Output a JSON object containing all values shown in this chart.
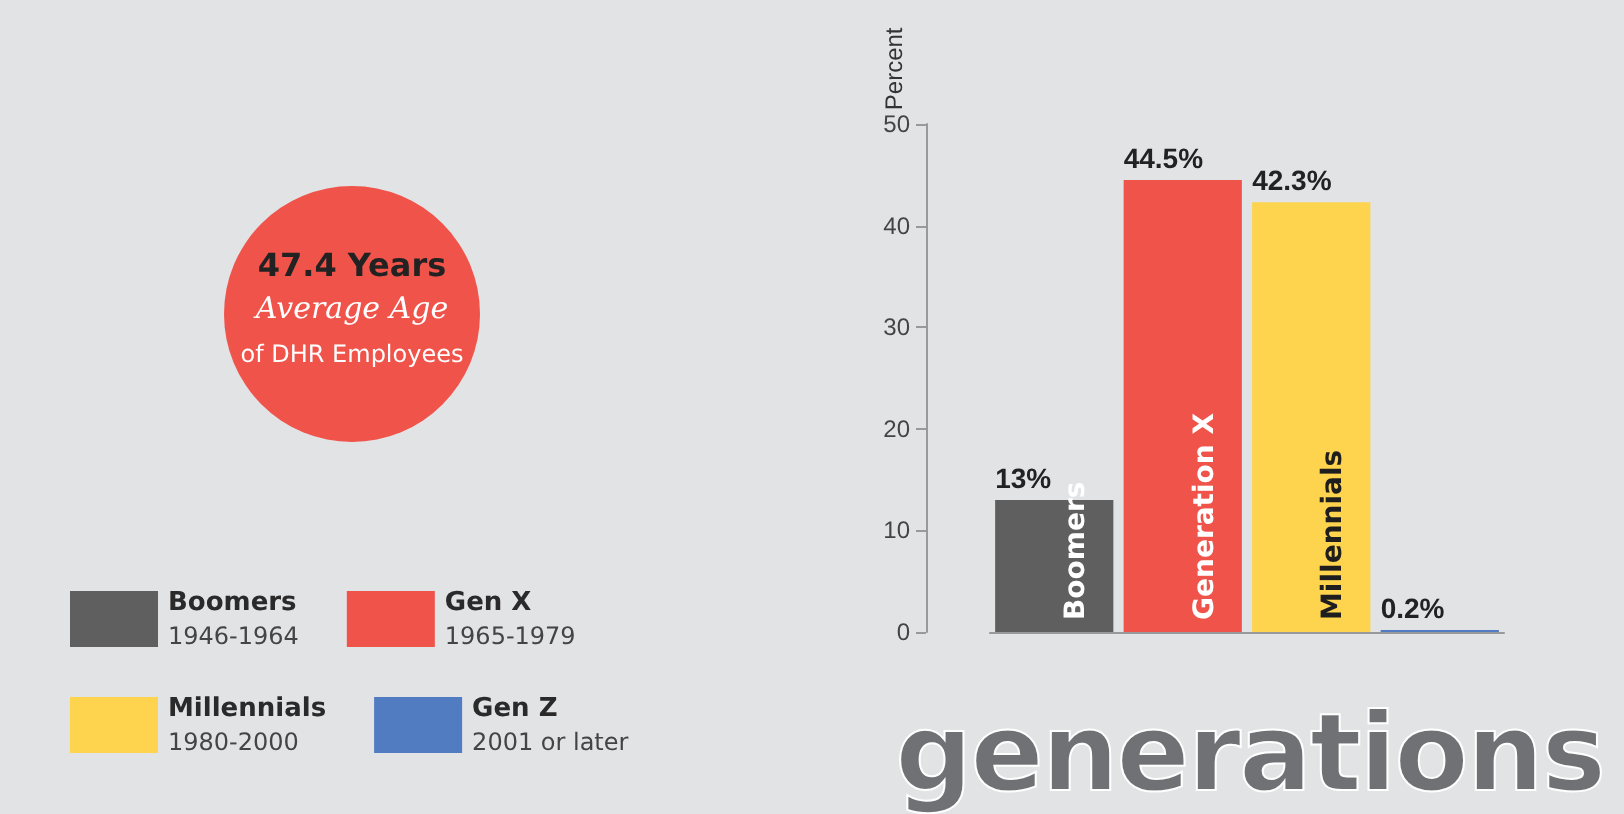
{
  "chart_data": {
    "type": "bar",
    "title": "generations",
    "categories": [
      "Boomers",
      "Generation X",
      "Millennials",
      null
    ],
    "ylabel": "Percent",
    "ylim": [
      0,
      50
    ],
    "yticks": [
      0,
      10,
      20,
      30,
      40,
      50
    ],
    "stacked": true,
    "legend": "bottom left",
    "series": [
      {
        "name": "Boomers",
        "color": "#5f5f5f",
        "values": [
          13,
          null,
          null,
          null
        ],
        "value_labels": [
          "13%",
          null,
          null,
          null
        ]
      },
      {
        "name": "Gen X",
        "color": "#f0534a",
        "values": [
          null,
          44.5,
          null,
          null
        ],
        "value_labels": [
          null,
          "44.5%",
          null,
          null
        ]
      },
      {
        "name": "Millennials",
        "color": "#fed34d",
        "values": [
          null,
          null,
          42.3,
          null
        ],
        "value_labels": [
          null,
          null,
          "42.3%",
          null
        ]
      },
      {
        "name": "Gen Z",
        "color": "#527cc1",
        "values": [
          null,
          null,
          null,
          0.2
        ],
        "value_labels": [
          null,
          null,
          null,
          "0.2%"
        ]
      }
    ],
    "annotations": [
      "47.4 Years",
      "Average Age",
      "of DHR Employees",
      "1946-1964",
      "1965-1979",
      "1980-2000",
      "2001 or later"
    ]
  }
}
